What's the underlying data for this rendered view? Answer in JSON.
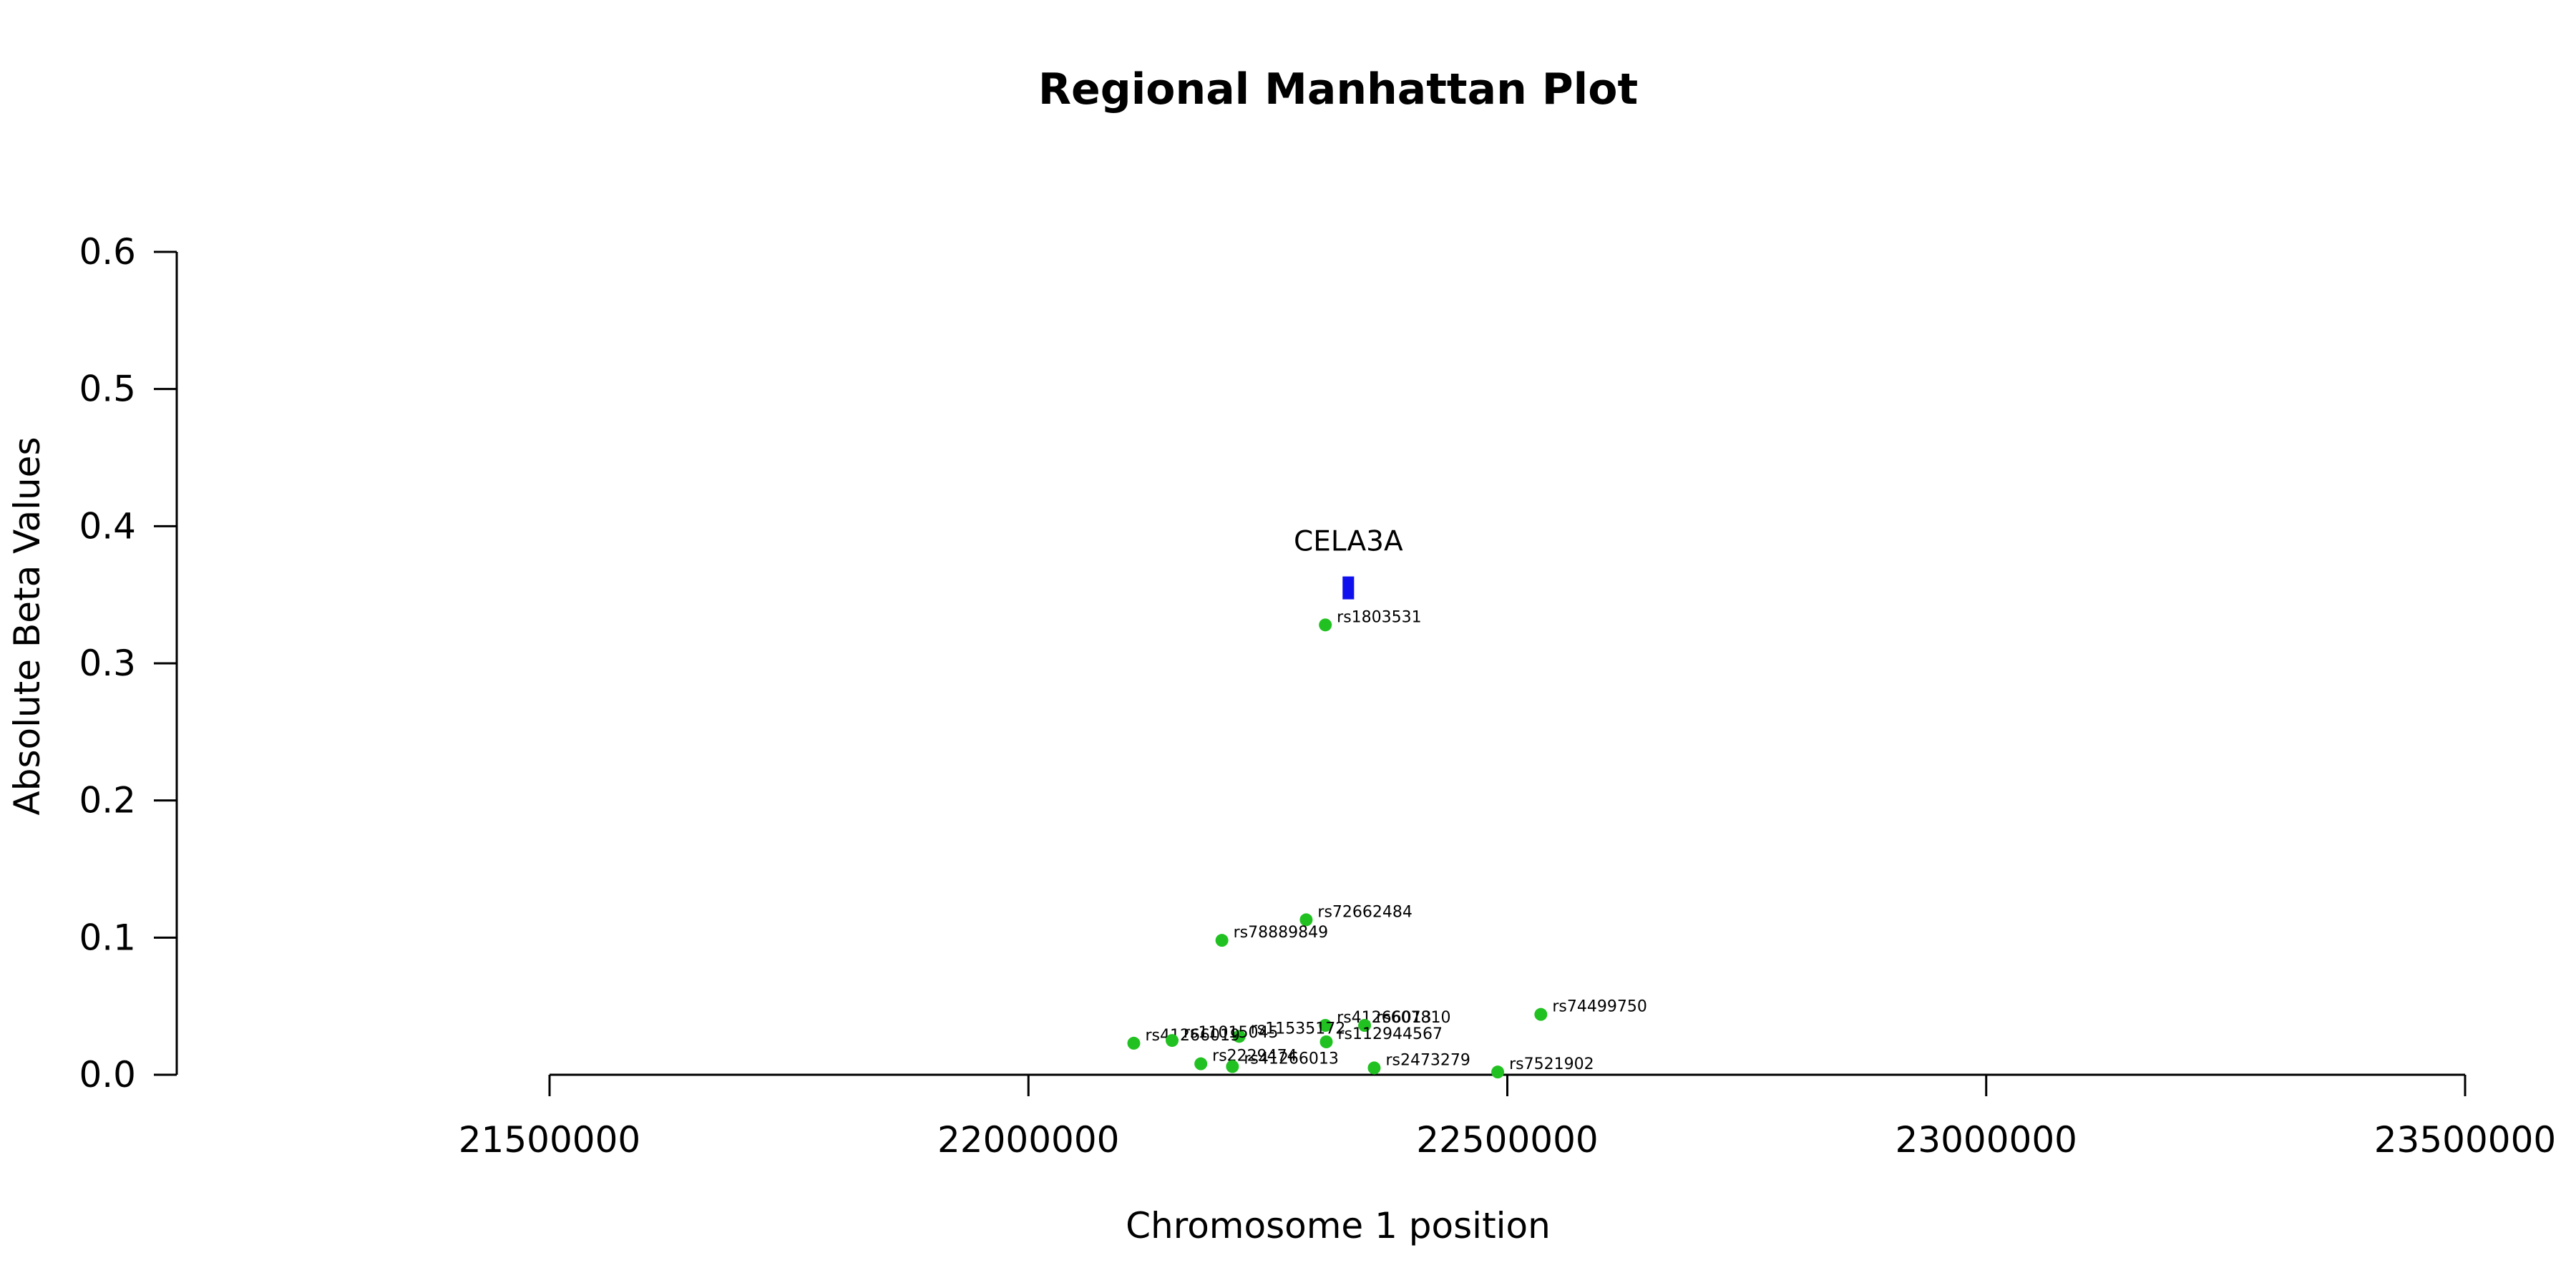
{
  "chart_data": {
    "type": "scatter",
    "title": "Regional Manhattan Plot",
    "xlabel": "Chromosome 1 position",
    "ylabel": "Absolute Beta Values",
    "xlim": [
      21500000,
      23500000
    ],
    "ylim": [
      0,
      0.6
    ],
    "x_ticks": [
      21500000,
      22000000,
      22500000,
      23000000,
      23500000
    ],
    "x_tick_labels": [
      "21500000",
      "22000000",
      "22500000",
      "23000000",
      "23500000"
    ],
    "y_ticks": [
      0,
      0.1,
      0.2,
      0.3,
      0.4,
      0.5,
      0.6
    ],
    "y_tick_labels": [
      "0.0",
      "0.1",
      "0.2",
      "0.3",
      "0.4",
      "0.5",
      "0.6"
    ],
    "grid": false,
    "point_color": "#22c122",
    "gene_color": "#1010ee",
    "genes": [
      {
        "name": "CELA3A",
        "start": 22328000,
        "end": 22340000,
        "y": 0.355
      }
    ],
    "points": [
      {
        "label": "rs1803531",
        "x": 22310000,
        "y": 0.328
      },
      {
        "label": "rs72662484",
        "x": 22290000,
        "y": 0.113
      },
      {
        "label": "rs78889849",
        "x": 22202000,
        "y": 0.098
      },
      {
        "label": "rs74499750",
        "x": 22535000,
        "y": 0.044
      },
      {
        "label": "rs41266013",
        "x": 22310000,
        "y": 0.036
      },
      {
        "label": "rs607810",
        "x": 22351000,
        "y": 0.036
      },
      {
        "label": "rs11535172",
        "x": 22220000,
        "y": 0.028
      },
      {
        "label": "rs112944567",
        "x": 22311000,
        "y": 0.024
      },
      {
        "label": "rs41266019",
        "x": 22110000,
        "y": 0.023
      },
      {
        "label": "rs11015045",
        "x": 22150000,
        "y": 0.025
      },
      {
        "label": "rs2229474",
        "x": 22180000,
        "y": 0.008
      },
      {
        "label": "rs41266013",
        "x": 22213000,
        "y": 0.006
      },
      {
        "label": "rs2473279",
        "x": 22361000,
        "y": 0.005
      },
      {
        "label": "rs7521902",
        "x": 22490000,
        "y": 0.002
      }
    ]
  }
}
